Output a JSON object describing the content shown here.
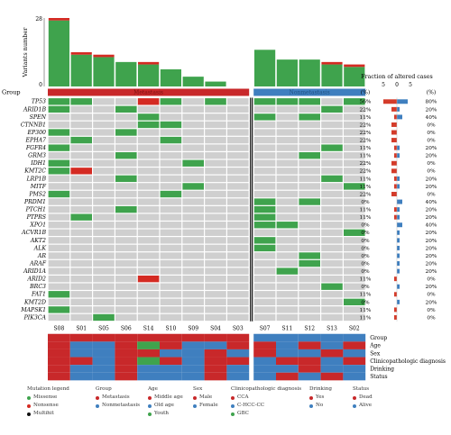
{
  "chart_data": {
    "type": "heatmap",
    "y_axis_label": "Variants number",
    "y_axis_ticks": [
      0,
      28
    ],
    "fraction_title": "Fraction of altered cases",
    "fraction_ticks": [
      "5",
      "0",
      "5"
    ],
    "pct_header": "(%)",
    "group_row_label": "Group",
    "groups": [
      {
        "name": "Metastasis",
        "samples": [
          "S08",
          "S01",
          "S05",
          "S06",
          "S14",
          "S10",
          "S09",
          "S04",
          "S03"
        ],
        "color": "#c8282a"
      },
      {
        "name": "Nonmetastasis",
        "samples": [
          "S07",
          "S11",
          "S12",
          "S13",
          "S02"
        ],
        "color": "#3f7fbf"
      }
    ],
    "samples": [
      "S08",
      "S01",
      "S05",
      "S06",
      "S14",
      "S10",
      "S09",
      "S04",
      "S03",
      "S07",
      "S11",
      "S12",
      "S13",
      "S02"
    ],
    "variant_counts": [
      {
        "sample": "S08",
        "missense": 27,
        "nonsense": 1
      },
      {
        "sample": "S01",
        "missense": 13,
        "nonsense": 1
      },
      {
        "sample": "S05",
        "missense": 12,
        "nonsense": 1
      },
      {
        "sample": "S06",
        "missense": 10,
        "nonsense": 0
      },
      {
        "sample": "S14",
        "missense": 9,
        "nonsense": 1
      },
      {
        "sample": "S10",
        "missense": 7,
        "nonsense": 0
      },
      {
        "sample": "S09",
        "missense": 4,
        "nonsense": 0
      },
      {
        "sample": "S04",
        "missense": 2,
        "nonsense": 0
      },
      {
        "sample": "S03",
        "missense": 0,
        "nonsense": 0
      },
      {
        "sample": "S07",
        "missense": 15,
        "nonsense": 0
      },
      {
        "sample": "S11",
        "missense": 11,
        "nonsense": 0
      },
      {
        "sample": "S12",
        "missense": 11,
        "nonsense": 0
      },
      {
        "sample": "S13",
        "missense": 9,
        "nonsense": 1
      },
      {
        "sample": "S02",
        "missense": 8,
        "nonsense": 1
      }
    ],
    "genes": [
      {
        "name": "TP53",
        "pct_metastasis": "56%",
        "pct_nonmetastasis": "80%",
        "frac_metastasis": 5,
        "frac_nonmetastasis": 4,
        "mutations": {
          "S08": "missense",
          "S01": "missense",
          "S14": "nonsense",
          "S10": "missense",
          "S04": "missense",
          "S07": "missense",
          "S11": "missense",
          "S12": "missense",
          "S02": "missense"
        }
      },
      {
        "name": "ARID1B",
        "pct_metastasis": "22%",
        "pct_nonmetastasis": "20%",
        "frac_metastasis": 2,
        "frac_nonmetastasis": 1,
        "mutations": {
          "S08": "missense",
          "S06": "missense",
          "S13": "missense"
        }
      },
      {
        "name": "SPEN",
        "pct_metastasis": "11%",
        "pct_nonmetastasis": "40%",
        "frac_metastasis": 1,
        "frac_nonmetastasis": 2,
        "mutations": {
          "S14": "missense",
          "S07": "missense",
          "S12": "missense"
        }
      },
      {
        "name": "CTNNB1",
        "pct_metastasis": "22%",
        "pct_nonmetastasis": "0%",
        "frac_metastasis": 2,
        "frac_nonmetastasis": 0,
        "mutations": {
          "S14": "missense",
          "S10": "missense"
        }
      },
      {
        "name": "EP300",
        "pct_metastasis": "22%",
        "pct_nonmetastasis": "0%",
        "frac_metastasis": 2,
        "frac_nonmetastasis": 0,
        "mutations": {
          "S08": "missense",
          "S06": "missense"
        }
      },
      {
        "name": "EPHA7",
        "pct_metastasis": "22%",
        "pct_nonmetastasis": "0%",
        "frac_metastasis": 2,
        "frac_nonmetastasis": 0,
        "mutations": {
          "S01": "missense",
          "S10": "missense"
        }
      },
      {
        "name": "FGFR4",
        "pct_metastasis": "11%",
        "pct_nonmetastasis": "20%",
        "frac_metastasis": 1,
        "frac_nonmetastasis": 1,
        "mutations": {
          "S08": "missense",
          "S13": "missense"
        }
      },
      {
        "name": "GRM3",
        "pct_metastasis": "11%",
        "pct_nonmetastasis": "20%",
        "frac_metastasis": 1,
        "frac_nonmetastasis": 1,
        "mutations": {
          "S06": "missense",
          "S12": "missense"
        }
      },
      {
        "name": "IDH1",
        "pct_metastasis": "22%",
        "pct_nonmetastasis": "0%",
        "frac_metastasis": 2,
        "frac_nonmetastasis": 0,
        "mutations": {
          "S08": "missense",
          "S09": "missense"
        }
      },
      {
        "name": "KMT2C",
        "pct_metastasis": "22%",
        "pct_nonmetastasis": "0%",
        "frac_metastasis": 2,
        "frac_nonmetastasis": 0,
        "mutations": {
          "S08": "missense",
          "S01": "nonsense"
        }
      },
      {
        "name": "LRP1B",
        "pct_metastasis": "11%",
        "pct_nonmetastasis": "20%",
        "frac_metastasis": 1,
        "frac_nonmetastasis": 1,
        "mutations": {
          "S06": "missense",
          "S13": "missense"
        }
      },
      {
        "name": "MITF",
        "pct_metastasis": "11%",
        "pct_nonmetastasis": "20%",
        "frac_metastasis": 1,
        "frac_nonmetastasis": 1,
        "mutations": {
          "S09": "missense",
          "S02": "missense"
        }
      },
      {
        "name": "PMS2",
        "pct_metastasis": "22%",
        "pct_nonmetastasis": "0%",
        "frac_metastasis": 2,
        "frac_nonmetastasis": 0,
        "mutations": {
          "S08": "missense",
          "S10": "missense"
        }
      },
      {
        "name": "PRDM1",
        "pct_metastasis": "0%",
        "pct_nonmetastasis": "40%",
        "frac_metastasis": 0,
        "frac_nonmetastasis": 2,
        "mutations": {
          "S07": "missense",
          "S12": "missense"
        }
      },
      {
        "name": "PTCH1",
        "pct_metastasis": "11%",
        "pct_nonmetastasis": "20%",
        "frac_metastasis": 1,
        "frac_nonmetastasis": 1,
        "mutations": {
          "S06": "missense",
          "S07": "missense"
        }
      },
      {
        "name": "PTPRS",
        "pct_metastasis": "11%",
        "pct_nonmetastasis": "20%",
        "frac_metastasis": 1,
        "frac_nonmetastasis": 1,
        "mutations": {
          "S01": "missense",
          "S07": "missense"
        }
      },
      {
        "name": "XPO1",
        "pct_metastasis": "0%",
        "pct_nonmetastasis": "40%",
        "frac_metastasis": 0,
        "frac_nonmetastasis": 2,
        "mutations": {
          "S07": "missense",
          "S11": "missense"
        }
      },
      {
        "name": "ACVR1B",
        "pct_metastasis": "0%",
        "pct_nonmetastasis": "20%",
        "frac_metastasis": 0,
        "frac_nonmetastasis": 1,
        "mutations": {
          "S02": "missense"
        }
      },
      {
        "name": "AKT2",
        "pct_metastasis": "0%",
        "pct_nonmetastasis": "20%",
        "frac_metastasis": 0,
        "frac_nonmetastasis": 1,
        "mutations": {
          "S07": "missense"
        }
      },
      {
        "name": "ALK",
        "pct_metastasis": "0%",
        "pct_nonmetastasis": "20%",
        "frac_metastasis": 0,
        "frac_nonmetastasis": 1,
        "mutations": {
          "S07": "missense"
        }
      },
      {
        "name": "AR",
        "pct_metastasis": "0%",
        "pct_nonmetastasis": "20%",
        "frac_metastasis": 0,
        "frac_nonmetastasis": 1,
        "mutations": {
          "S12": "missense"
        }
      },
      {
        "name": "ARAF",
        "pct_metastasis": "0%",
        "pct_nonmetastasis": "20%",
        "frac_metastasis": 0,
        "frac_nonmetastasis": 1,
        "mutations": {
          "S12": "missense"
        }
      },
      {
        "name": "ARID1A",
        "pct_metastasis": "0%",
        "pct_nonmetastasis": "20%",
        "frac_metastasis": 0,
        "frac_nonmetastasis": 1,
        "mutations": {
          "S11": "missense"
        }
      },
      {
        "name": "ARID2",
        "pct_metastasis": "11%",
        "pct_nonmetastasis": "0%",
        "frac_metastasis": 1,
        "frac_nonmetastasis": 0,
        "mutations": {
          "S14": "nonsense"
        }
      },
      {
        "name": "BRC3",
        "pct_metastasis": "0%",
        "pct_nonmetastasis": "20%",
        "frac_metastasis": 0,
        "frac_nonmetastasis": 1,
        "mutations": {
          "S13": "missense"
        }
      },
      {
        "name": "FAT1",
        "pct_metastasis": "11%",
        "pct_nonmetastasis": "0%",
        "frac_metastasis": 1,
        "frac_nonmetastasis": 0,
        "mutations": {
          "S08": "missense"
        }
      },
      {
        "name": "KMT2D",
        "pct_metastasis": "0%",
        "pct_nonmetastasis": "20%",
        "frac_metastasis": 0,
        "frac_nonmetastasis": 1,
        "mutations": {
          "S02": "missense"
        }
      },
      {
        "name": "MAPSK1",
        "pct_metastasis": "11%",
        "pct_nonmetastasis": "0%",
        "frac_metastasis": 1,
        "frac_nonmetastasis": 0,
        "mutations": {
          "S08": "missense"
        }
      },
      {
        "name": "PIK3CA",
        "pct_metastasis": "11%",
        "pct_nonmetastasis": "0%",
        "frac_metastasis": 1,
        "frac_nonmetastasis": 0,
        "mutations": {
          "S05": "missense"
        }
      }
    ],
    "clinical_rows": [
      {
        "name": "Group",
        "values": {
          "S08": "Metastasis",
          "S01": "Metastasis",
          "S05": "Metastasis",
          "S06": "Metastasis",
          "S14": "Metastasis",
          "S10": "Metastasis",
          "S09": "Metastasis",
          "S04": "Metastasis",
          "S03": "Metastasis",
          "S07": "Nonmetastasis",
          "S11": "Nonmetastasis",
          "S12": "Nonmetastasis",
          "S13": "Nonmetastasis",
          "S02": "Nonmetastasis"
        }
      },
      {
        "name": "Age",
        "values": {
          "S08": "Middle age",
          "S01": "Old age",
          "S05": "Old age",
          "S06": "Middle age",
          "S14": "Youth",
          "S10": "Middle age",
          "S09": "Old age",
          "S04": "Old age",
          "S03": "Middle age",
          "S07": "Middle age",
          "S11": "Old age",
          "S12": "Middle age",
          "S13": "Old age",
          "S02": "Middle age"
        }
      },
      {
        "name": "Sex",
        "values": {
          "S08": "Male",
          "S01": "Female",
          "S05": "Female",
          "S06": "Male",
          "S14": "Male",
          "S10": "Female",
          "S09": "Female",
          "S04": "Male",
          "S03": "Female",
          "S07": "Male",
          "S11": "Female",
          "S12": "Female",
          "S13": "Male",
          "S02": "Female"
        }
      },
      {
        "name": "Clinicopathologic diagnosis",
        "values": {
          "S08": "CCA",
          "S01": "CCA",
          "S05": "C-HCC-CC",
          "S06": "CCA",
          "S14": "GBC",
          "S10": "CCA",
          "S09": "C-HCC-CC",
          "S04": "CCA",
          "S03": "CCA",
          "S07": "C-HCC-CC",
          "S11": "CCA",
          "S12": "CCA",
          "S13": "C-HCC-CC",
          "S02": "CCA"
        }
      },
      {
        "name": "Drinking",
        "values": {
          "S08": "Yes",
          "S01": "No",
          "S05": "No",
          "S06": "Yes",
          "S14": "No",
          "S10": "No",
          "S09": "No",
          "S04": "Yes",
          "S03": "No",
          "S07": "No",
          "S11": "No",
          "S12": "Yes",
          "S13": "No",
          "S02": "No"
        }
      },
      {
        "name": "Status",
        "values": {
          "S08": "Dead",
          "S01": "Alive",
          "S05": "Alive",
          "S06": "Dead",
          "S14": "Alive",
          "S10": "Alive",
          "S09": "Alive",
          "S04": "Dead",
          "S03": "Alive",
          "S07": "Alive",
          "S11": "Dead",
          "S12": "Alive",
          "S13": "Dead",
          "S02": "Alive"
        }
      }
    ],
    "colors": {
      "missense": "#3fa34d",
      "nonsense": "#d42a22",
      "multihit": "#111111",
      "empty": "#cfcfcf",
      "red": "#c8282a",
      "blue": "#3f7fbf",
      "green": "#3fa34d",
      "metastasis": "#c8282a",
      "nonmetastasis": "#3f7fbf",
      "frac_metastasis": "#d43b2a",
      "frac_nonmetastasis": "#3f7fbf"
    },
    "clinical_colors": {
      "Metastasis": "red",
      "Nonmetastasis": "blue",
      "Middle age": "red",
      "Old age": "blue",
      "Youth": "green",
      "Male": "red",
      "Female": "blue",
      "CCA": "red",
      "C-HCC-CC": "blue",
      "GBC": "green",
      "Yes": "red",
      "No": "blue",
      "Dead": "red",
      "Alive": "blue"
    },
    "legend": [
      {
        "title": "Mutation legend",
        "items": [
          {
            "label": "Missense",
            "color": "#3fa34d"
          },
          {
            "label": "Nonsense",
            "color": "#d42a22"
          },
          {
            "label": "Multihit",
            "color": "#111111"
          }
        ]
      },
      {
        "title": "Group",
        "items": [
          {
            "label": "Metastasis",
            "color": "#c8282a"
          },
          {
            "label": "Nonmetastasis",
            "color": "#3f7fbf"
          }
        ]
      },
      {
        "title": "Age",
        "items": [
          {
            "label": "Middle age",
            "color": "#c8282a"
          },
          {
            "label": "Old age",
            "color": "#3f7fbf"
          },
          {
            "label": "Youth",
            "color": "#3fa34d"
          }
        ]
      },
      {
        "title": "Sex",
        "items": [
          {
            "label": "Male",
            "color": "#c8282a"
          },
          {
            "label": "Female",
            "color": "#3f7fbf"
          }
        ]
      },
      {
        "title": "Clinicopathologic diagnosis",
        "items": [
          {
            "label": "CCA",
            "color": "#c8282a"
          },
          {
            "label": "C-HCC-CC",
            "color": "#3f7fbf"
          },
          {
            "label": "GBC",
            "color": "#3fa34d"
          }
        ]
      },
      {
        "title": "Drinking",
        "items": [
          {
            "label": "Yes",
            "color": "#c8282a"
          },
          {
            "label": "No",
            "color": "#3f7fbf"
          }
        ]
      },
      {
        "title": "Status",
        "items": [
          {
            "label": "Dead",
            "color": "#c8282a"
          },
          {
            "label": "Alive",
            "color": "#3f7fbf"
          }
        ]
      }
    ]
  }
}
